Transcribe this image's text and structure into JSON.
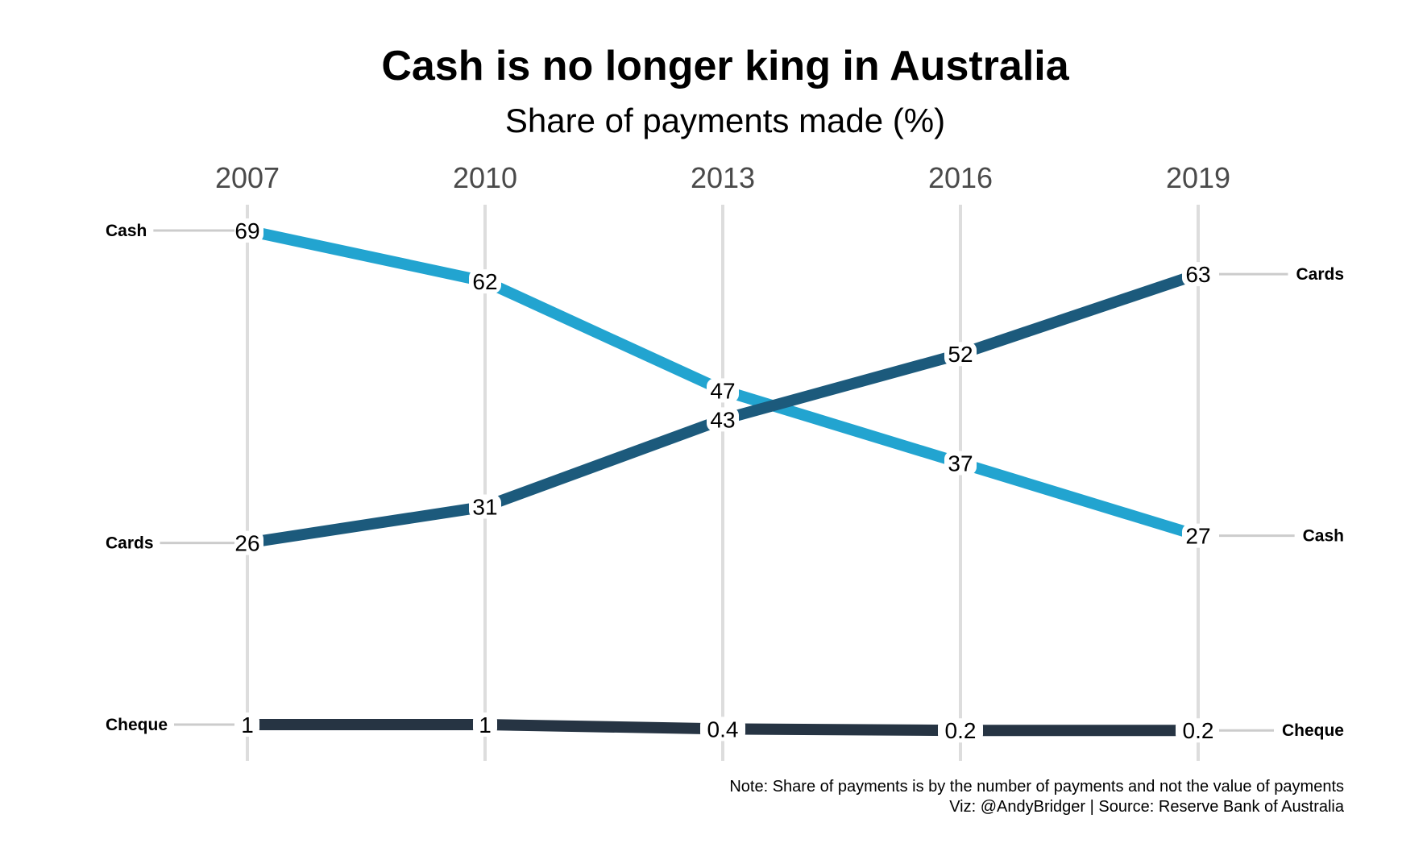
{
  "chart_data": {
    "type": "line",
    "title": "Cash is no longer king in Australia",
    "subtitle": "Share of payments made (%)",
    "x": [
      "2007",
      "2010",
      "2013",
      "2016",
      "2019"
    ],
    "series": [
      {
        "name": "Cash",
        "color": "#22a4d0",
        "values": [
          69,
          62,
          47,
          37,
          27
        ],
        "labels": [
          "69",
          "62",
          "47",
          "37",
          "27"
        ]
      },
      {
        "name": "Cards",
        "color": "#1c5a7c",
        "values": [
          26,
          31,
          43,
          52,
          63
        ],
        "labels": [
          "26",
          "31",
          "43",
          "52",
          "63"
        ]
      },
      {
        "name": "Cheque",
        "color": "#263443",
        "values": [
          1,
          1,
          0.4,
          0.2,
          0.2
        ],
        "labels": [
          "1",
          "1",
          "0.4",
          "0.2",
          "0.2"
        ]
      }
    ],
    "ylim": [
      0,
      69
    ],
    "grid": "vertical",
    "legend": "direct labels at both ends of each line",
    "caption_lines": [
      "Note: Share of payments is by the number of payments and not the value of payments",
      "Viz: @AndyBridger | Source: Reserve Bank of Australia"
    ]
  }
}
